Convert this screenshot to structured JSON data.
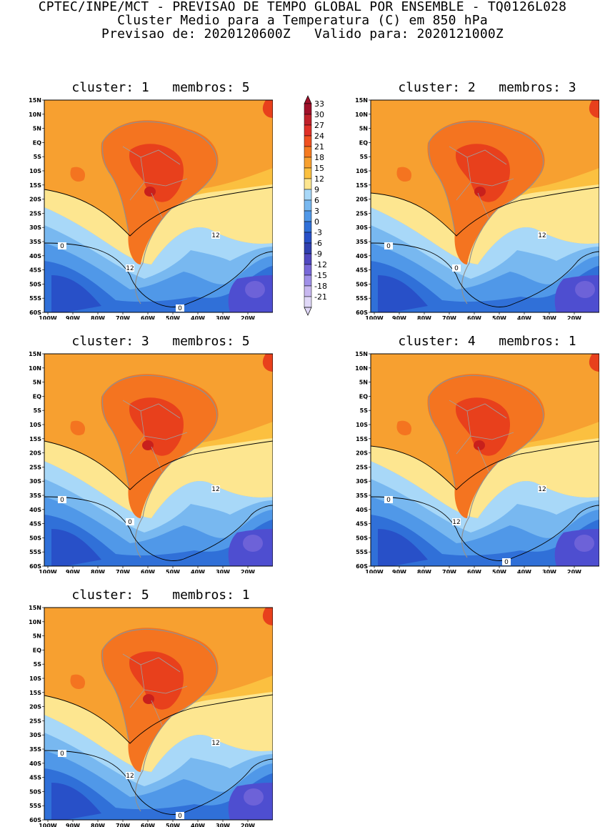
{
  "header": {
    "line1": "CPTEC/INPE/MCT - PREVISAO DE TEMPO GLOBAL POR ENSEMBLE - TQ0126L028",
    "line2": "Cluster Medio para a Temperatura (C) em 850 hPa",
    "line3": "Previsao de: 2020120600Z   Valido para: 2020121000Z"
  },
  "lat_ticks": [
    "15N",
    "10N",
    "5N",
    "EQ",
    "5S",
    "10S",
    "15S",
    "20S",
    "25S",
    "30S",
    "35S",
    "40S",
    "45S",
    "50S",
    "55S",
    "60S"
  ],
  "lon_ticks": [
    "100W",
    "90W",
    "80W",
    "70W",
    "60W",
    "50W",
    "40W",
    "30W",
    "20W"
  ],
  "colorbar": {
    "labels": [
      "33",
      "30",
      "27",
      "24",
      "21",
      "18",
      "15",
      "12",
      "9",
      "6",
      "3",
      "0",
      "-3",
      "-6",
      "-9",
      "-12",
      "-15",
      "-18",
      "-21"
    ],
    "colors": [
      "#a0102a",
      "#c0202a",
      "#e03028",
      "#f05020",
      "#f57a20",
      "#f7a030",
      "#fbc040",
      "#fde690",
      "#a8d8f8",
      "#78b8f0",
      "#5098e8",
      "#3070d8",
      "#2850c8",
      "#3040b0",
      "#5048c0",
      "#7868d8",
      "#a090e8",
      "#c8b8f0",
      "#e0d8f8"
    ]
  },
  "panels": [
    {
      "title": "cluster: 1   membros: 5",
      "contour_labels": [
        "12",
        "12",
        "0",
        "0"
      ]
    },
    {
      "title": "cluster: 2   membros: 3",
      "contour_labels": [
        "12",
        "0",
        "0"
      ]
    },
    {
      "title": "cluster: 3   membros: 5",
      "contour_labels": [
        "12",
        "0",
        "0"
      ]
    },
    {
      "title": "cluster: 4   membros: 1",
      "contour_labels": [
        "12",
        "12",
        "0",
        "0"
      ]
    },
    {
      "title": "cluster: 5   membros: 1",
      "contour_labels": [
        "12",
        "12",
        "0",
        "0"
      ]
    }
  ]
}
